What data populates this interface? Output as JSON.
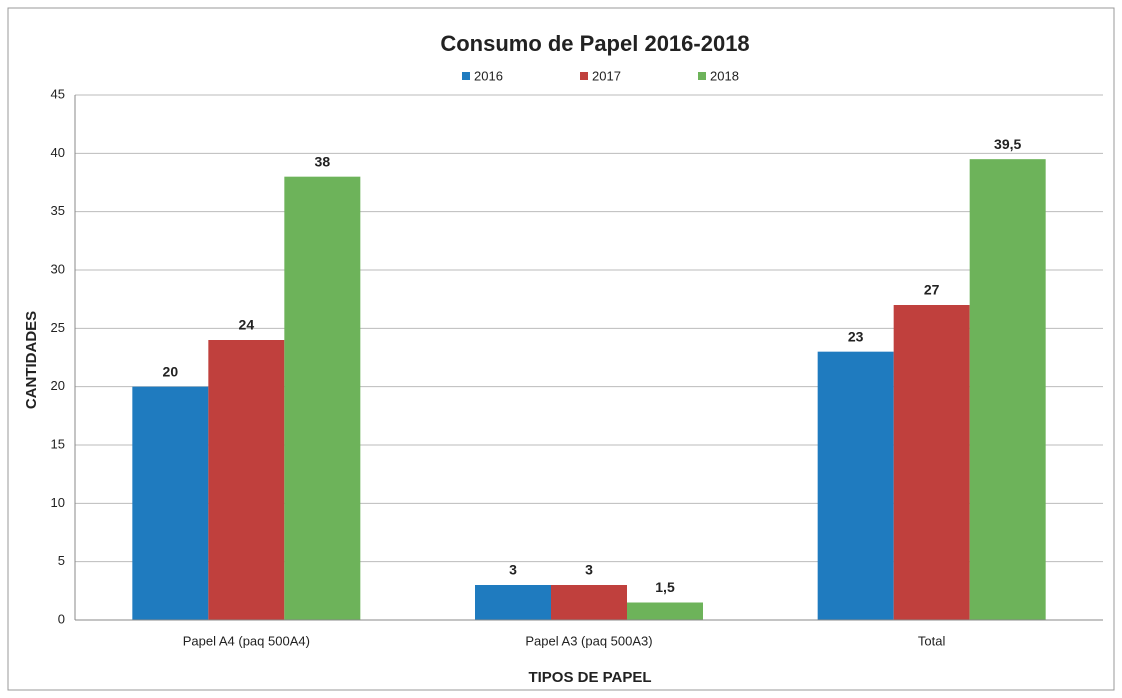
{
  "chart_data": {
    "type": "bar",
    "title": "Consumo de Papel 2016-2018",
    "categories": [
      "Papel A4 (paq 500A4)",
      "Papel A3 (paq 500A3)",
      "Total"
    ],
    "series": [
      {
        "name": "2016",
        "color": "#1f7bbf",
        "values": [
          20,
          3,
          23
        ],
        "value_labels": [
          "20",
          "3",
          "23"
        ]
      },
      {
        "name": "2017",
        "color": "#c0403d",
        "values": [
          24,
          3,
          27
        ],
        "value_labels": [
          "24",
          "3",
          "27"
        ]
      },
      {
        "name": "2018",
        "color": "#6db35a",
        "values": [
          38,
          1.5,
          39.5
        ],
        "value_labels": [
          "38",
          "1,5",
          "39,5"
        ]
      }
    ],
    "ylim": [
      0,
      45
    ],
    "yticks": [
      0,
      5,
      10,
      15,
      20,
      25,
      30,
      35,
      40,
      45
    ],
    "grid": true,
    "y_label": "CANTIDADES",
    "x_label": "TIPOS DE PAPEL",
    "legend": "top"
  }
}
